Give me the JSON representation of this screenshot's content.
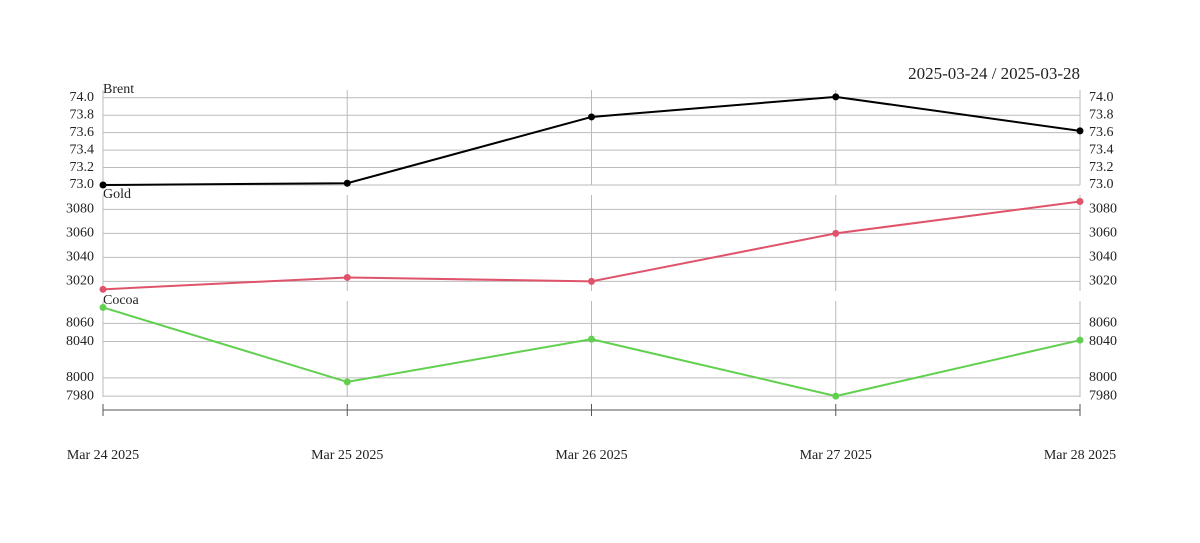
{
  "range_label": "2025-03-24 / 2025-03-28",
  "categories": [
    "Mar 24 2025",
    "Mar 25 2025",
    "Mar 26 2025",
    "Mar 27 2025",
    "Mar 28 2025"
  ],
  "chart_data": [
    {
      "type": "line",
      "title": "Brent",
      "color": "#000000",
      "values": [
        73.0,
        73.02,
        73.78,
        74.01,
        73.62
      ],
      "ylim": [
        73.0,
        74.02
      ],
      "yticks": [
        {
          "value": 73.0,
          "label": "73.0"
        },
        {
          "value": 73.2,
          "label": "73.2"
        },
        {
          "value": 73.4,
          "label": "73.4"
        },
        {
          "value": 73.6,
          "label": "73.6"
        },
        {
          "value": 73.8,
          "label": "73.8"
        },
        {
          "value": 74.0,
          "label": "74.0"
        }
      ],
      "grid": true
    },
    {
      "type": "line",
      "title": "Gold",
      "color": "#df536b",
      "values": [
        3013.4,
        3023.3,
        3020,
        3060,
        3086.6
      ],
      "ylim": [
        3012,
        3087
      ],
      "yticks": [
        3020,
        3040,
        3060,
        3080
      ],
      "grid": true
    },
    {
      "type": "line",
      "title": "Cocoa",
      "color": "#61d04f",
      "values": [
        8077.5,
        7995.6,
        8042.6,
        7980,
        8041.5
      ],
      "ylim": [
        7979,
        8078
      ],
      "yticks": [
        7980,
        8000,
        8040,
        8060
      ],
      "grid": true
    }
  ]
}
